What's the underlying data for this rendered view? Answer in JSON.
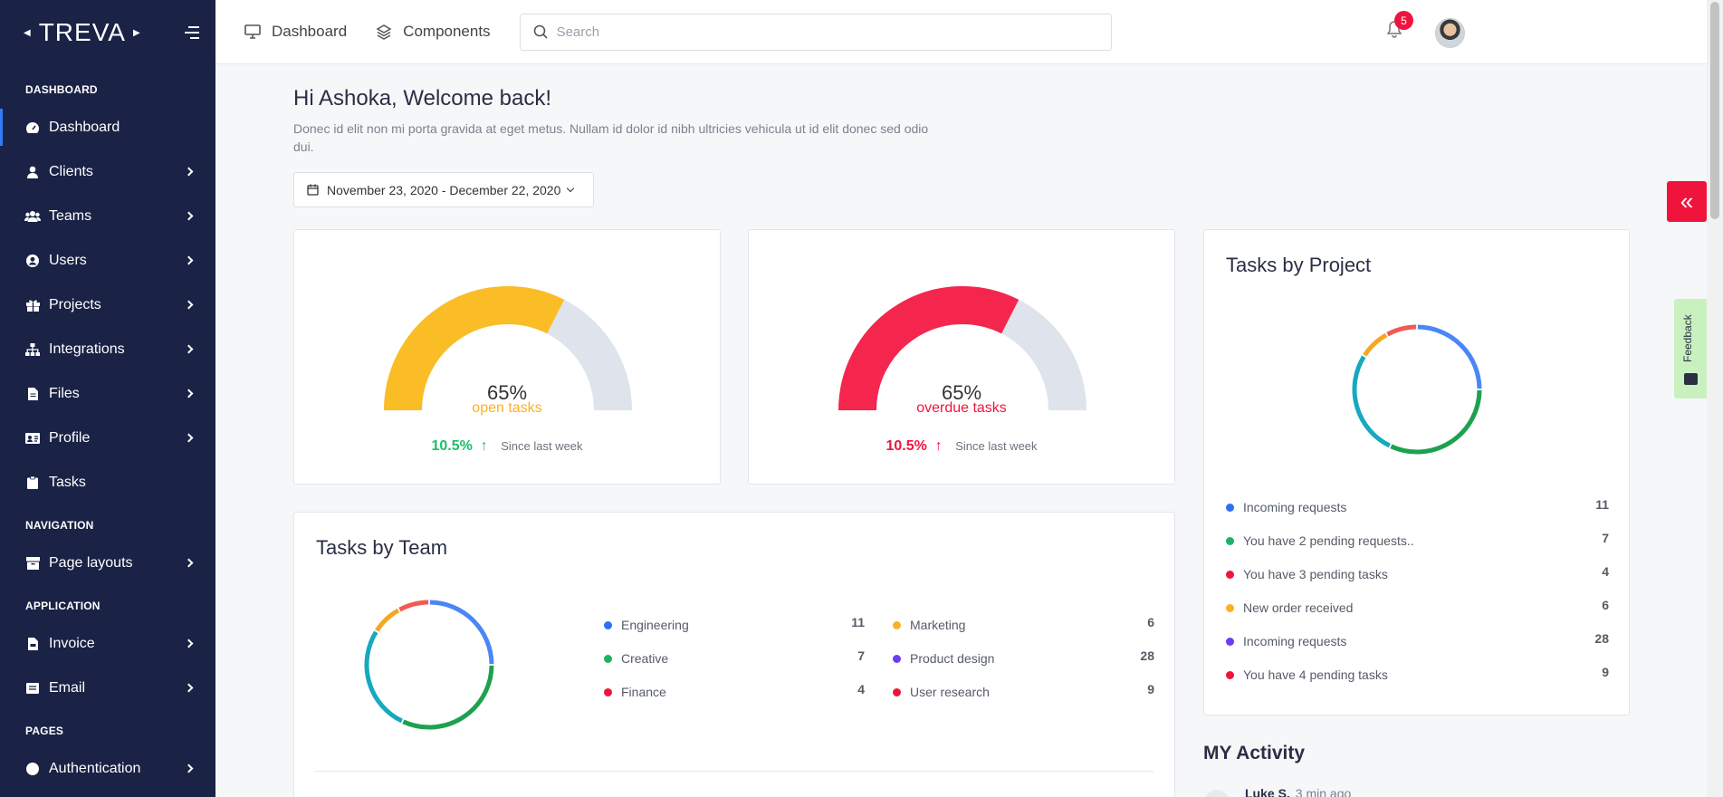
{
  "brand": {
    "name": "TREVA"
  },
  "sidebar": {
    "sections": [
      {
        "title": "DASHBOARD",
        "items": [
          {
            "label": "Dashboard",
            "icon": "speedometer-icon",
            "active": true,
            "chevron": false
          },
          {
            "label": "Clients",
            "icon": "person-icon",
            "chevron": true
          },
          {
            "label": "Teams",
            "icon": "users-icon",
            "chevron": true
          },
          {
            "label": "Users",
            "icon": "user-circle-icon",
            "chevron": true
          },
          {
            "label": "Projects",
            "icon": "gift-icon",
            "chevron": true
          },
          {
            "label": "Integrations",
            "icon": "sitemap-icon",
            "chevron": true
          },
          {
            "label": "Files",
            "icon": "file-icon",
            "chevron": true
          },
          {
            "label": "Profile",
            "icon": "id-card-icon",
            "chevron": true
          },
          {
            "label": "Tasks",
            "icon": "clipboard-icon",
            "chevron": false
          }
        ]
      },
      {
        "title": "NAVIGATION",
        "items": [
          {
            "label": "Page layouts",
            "icon": "box-icon",
            "chevron": true
          }
        ]
      },
      {
        "title": "APPLICATION",
        "items": [
          {
            "label": "Invoice",
            "icon": "file-invoice-icon",
            "chevron": true
          },
          {
            "label": "Email",
            "icon": "envelope-icon",
            "chevron": true
          }
        ]
      },
      {
        "title": "PAGES",
        "items": [
          {
            "label": "Authentication",
            "icon": "lock-icon",
            "chevron": true
          }
        ]
      }
    ]
  },
  "topbar": {
    "links": [
      {
        "label": "Dashboard",
        "icon": "monitor-icon"
      },
      {
        "label": "Components",
        "icon": "layers-icon"
      }
    ],
    "search_placeholder": "Search",
    "notification_count": "5"
  },
  "welcome": {
    "title": "Hi Ashoka, Welcome back!",
    "subtitle": "Donec id elit non mi porta gravida at eget metus. Nullam id dolor id nibh ultricies vehicula ut id elit donec sed odio dui."
  },
  "date_range": "November 23, 2020 - December 22, 2020",
  "gauges": [
    {
      "value": 65,
      "value_label": "65%",
      "label": "open tasks",
      "color": "#fbbd25",
      "track": "#dfe3ec",
      "change": "10.5%",
      "change_color": "#1bbf6b",
      "since": "Since last week"
    },
    {
      "value": 65,
      "value_label": "65%",
      "label": "overdue tasks",
      "color": "#f5264d",
      "track": "#dfe3ec",
      "change": "10.5%",
      "change_color": "#f0143d",
      "since": "Since last week"
    }
  ],
  "tasks_by_project": {
    "title": "Tasks by Project",
    "items": [
      {
        "label": "Incoming requests",
        "value": "11",
        "color": "#2f6ff5"
      },
      {
        "label": "You have 2 pending requests..",
        "value": "7",
        "color": "#1db364"
      },
      {
        "label": "You have 3 pending tasks",
        "value": "4",
        "color": "#f0143d"
      },
      {
        "label": "New order received",
        "value": "6",
        "color": "#fbb025"
      },
      {
        "label": "Incoming requests",
        "value": "28",
        "color": "#6d3cf0"
      },
      {
        "label": "You have 4 pending tasks",
        "value": "9",
        "color": "#f0143d"
      }
    ]
  },
  "tasks_by_team": {
    "title": "Tasks by Team",
    "items": [
      {
        "label": "Engineering",
        "value": "11",
        "color": "#2f6ff5"
      },
      {
        "label": "Creative",
        "value": "7",
        "color": "#1db364"
      },
      {
        "label": "Finance",
        "value": "4",
        "color": "#f0143d"
      },
      {
        "label": "Marketing",
        "value": "6",
        "color": "#fbb025"
      },
      {
        "label": "Product design",
        "value": "28",
        "color": "#6d3cf0"
      },
      {
        "label": "User research",
        "value": "9",
        "color": "#f0143d"
      }
    ]
  },
  "donut_segments": [
    {
      "fraction": 0.25,
      "color": "#4a86f7"
    },
    {
      "fraction": 0.32,
      "color": "#1ea14f"
    },
    {
      "fraction": 0.27,
      "color": "#16a9bf"
    },
    {
      "fraction": 0.08,
      "color": "#f6a623"
    },
    {
      "fraction": 0.08,
      "color": "#f05a55"
    }
  ],
  "activity": {
    "title": "MY Activity",
    "first_name": "Luke S.",
    "first_time": "3 min ago"
  },
  "feedback_label": "Feedback"
}
